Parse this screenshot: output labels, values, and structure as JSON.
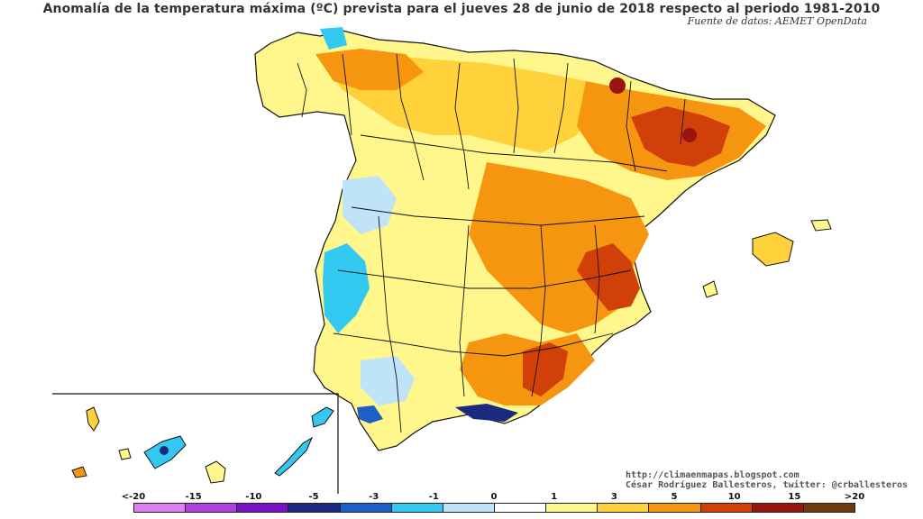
{
  "title": "Anomalía de la temperatura máxima (ºC) prevista para el jueves 28 de junio de 2018 respecto al periodo 1981-2010",
  "source": "Fuente de datos: AEMET OpenData",
  "credits": {
    "url": "http://climaenmapas.blogspot.com",
    "author": "César Rodríguez Ballesteros, twitter: @crballesteros"
  },
  "legend": {
    "ticks": [
      "<-20",
      "-15",
      "-10",
      "-5",
      "-3",
      "-1",
      "0",
      "1",
      "3",
      "5",
      "10",
      "15",
      ">20"
    ],
    "colors": [
      "#e07ff0",
      "#b040e0",
      "#7a10c8",
      "#1a2a80",
      "#1e5ec8",
      "#32c8f0",
      "#bfe3f7",
      "#ffffff",
      "#fff78c",
      "#ffd23c",
      "#f59510",
      "#d2400a",
      "#9a1410",
      "#6e3a0c"
    ]
  }
}
